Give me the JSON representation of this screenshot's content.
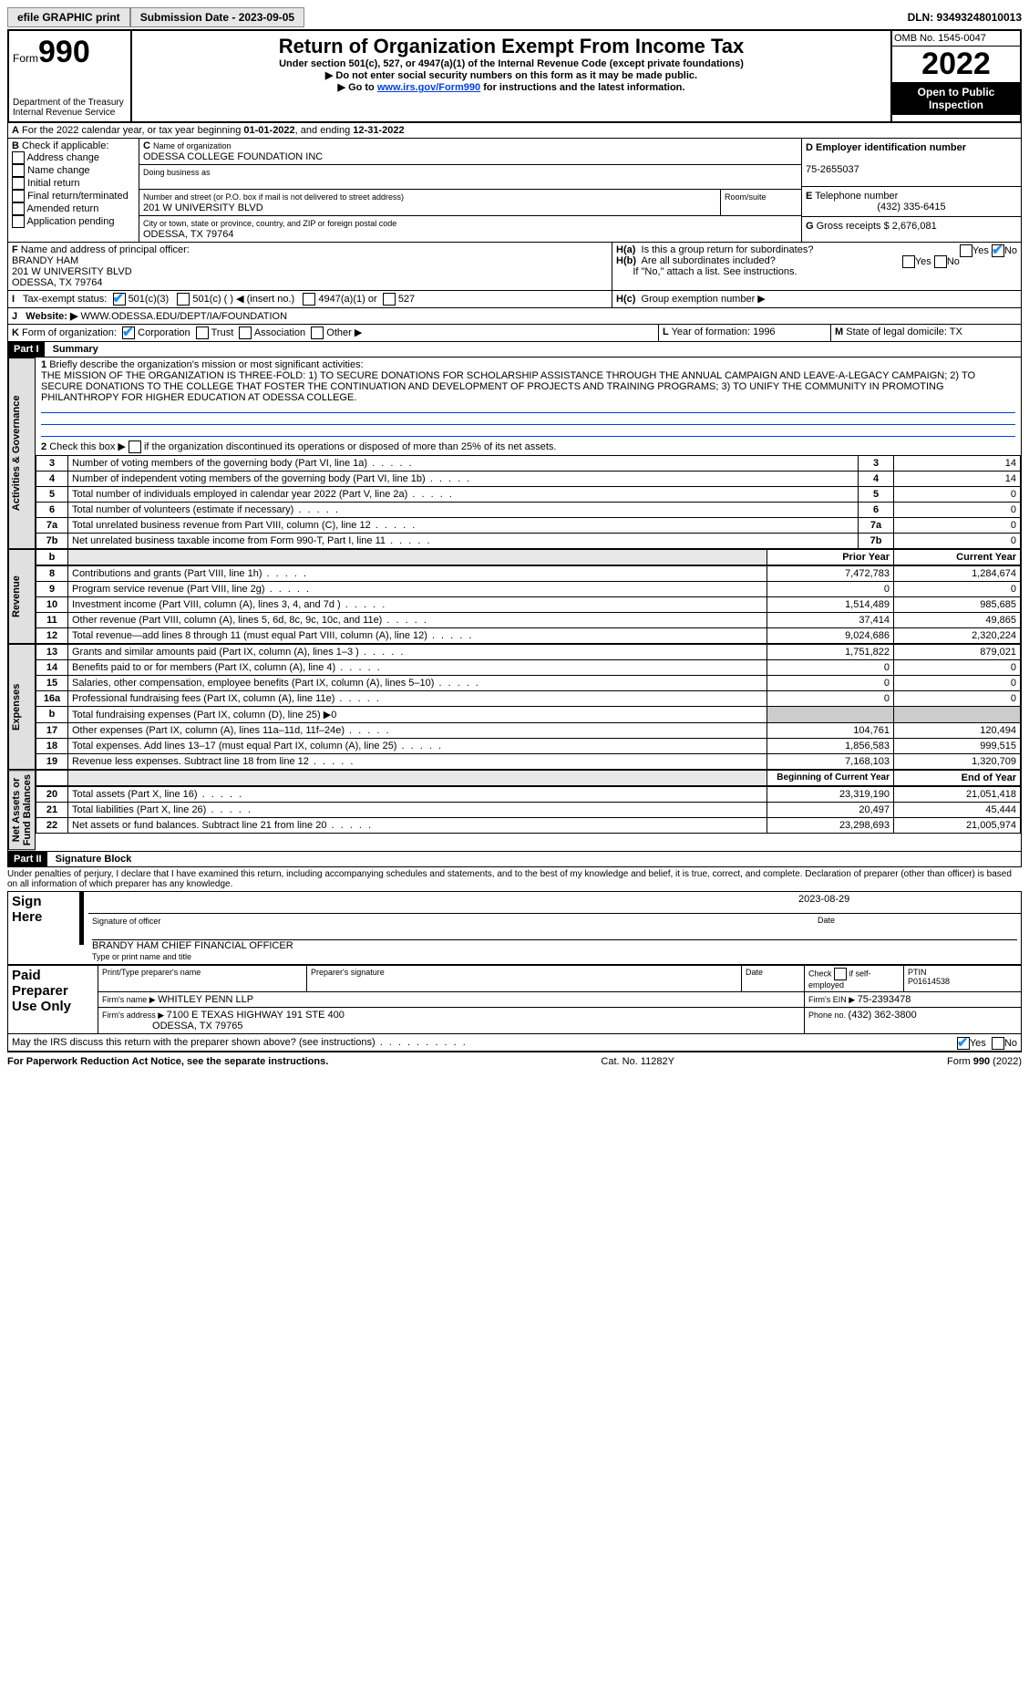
{
  "top": {
    "efile": "efile GRAPHIC print",
    "submission_label": "Submission Date - 2023-09-05",
    "dln_label": "DLN: 93493248010013"
  },
  "header": {
    "form_prefix": "Form",
    "form_number": "990",
    "dept": "Department of the Treasury\nInternal Revenue Service",
    "title": "Return of Organization Exempt From Income Tax",
    "subtitle1": "Under section 501(c), 527, or 4947(a)(1) of the Internal Revenue Code (except private foundations)",
    "subtitle2": "▶ Do not enter social security numbers on this form as it may be made public.",
    "subtitle3_prefix": "▶ Go to ",
    "subtitle3_link": "www.irs.gov/Form990",
    "subtitle3_suffix": " for instructions and the latest information.",
    "omb": "OMB No. 1545-0047",
    "year": "2022",
    "open": "Open to Public Inspection"
  },
  "A": {
    "text_prefix": "For the 2022 calendar year, or tax year beginning ",
    "begin": "01-01-2022",
    "mid": ", and ending ",
    "end": "12-31-2022"
  },
  "B": {
    "label": "Check if applicable:",
    "opts": [
      "Address change",
      "Name change",
      "Initial return",
      "Final return/terminated",
      "Amended return",
      "Application pending"
    ]
  },
  "C": {
    "name_label": "Name of organization",
    "name": "ODESSA COLLEGE FOUNDATION INC",
    "dba_label": "Doing business as",
    "street_label": "Number and street (or P.O. box if mail is not delivered to street address)",
    "street": "201 W UNIVERSITY BLVD",
    "room_label": "Room/suite",
    "city_label": "City or town, state or province, country, and ZIP or foreign postal code",
    "city": "ODESSA, TX  79764"
  },
  "D": {
    "label": "Employer identification number",
    "value": "75-2655037"
  },
  "E": {
    "label": "Telephone number",
    "value": "(432) 335-6415"
  },
  "G": {
    "label_prefix": "Gross receipts $ ",
    "value": "2,676,081"
  },
  "F": {
    "label": "Name and address of principal officer:",
    "name": "BRANDY HAM",
    "addr1": "201 W UNIVERSITY BLVD",
    "addr2": "ODESSA, TX  79764"
  },
  "H": {
    "a_label": "Is this a group return for subordinates?",
    "a_yes": "Yes",
    "a_no": "No",
    "b_label": "Are all subordinates included?",
    "b_yes": "Yes",
    "b_no": "No",
    "b_note": "If \"No,\" attach a list. See instructions.",
    "c_label": "Group exemption number ▶"
  },
  "I": {
    "label": "Tax-exempt status:",
    "opts": [
      "501(c)(3)",
      "501(c) (  ) ◀ (insert no.)",
      "4947(a)(1) or",
      "527"
    ]
  },
  "J": {
    "label": "Website: ▶",
    "value": "WWW.ODESSA.EDU/DEPT/IA/FOUNDATION"
  },
  "K": {
    "label": "Form of organization:",
    "opts": [
      "Corporation",
      "Trust",
      "Association",
      "Other ▶"
    ]
  },
  "L": {
    "label": "Year of formation: ",
    "value": "1996"
  },
  "M": {
    "label": "State of legal domicile: ",
    "value": "TX"
  },
  "part1": {
    "title_bar": "Part I",
    "title": "Summary",
    "line1_label": "Briefly describe the organization's mission or most significant activities:",
    "mission": "THE MISSION OF THE ORGANIZATION IS THREE-FOLD: 1) TO SECURE DONATIONS FOR SCHOLARSHIP ASSISTANCE THROUGH THE ANNUAL CAMPAIGN AND LEAVE-A-LEGACY CAMPAIGN; 2) TO SECURE DONATIONS TO THE COLLEGE THAT FOSTER THE CONTINUATION AND DEVELOPMENT OF PROJECTS AND TRAINING PROGRAMS; 3) TO UNIFY THE COMMUNITY IN PROMOTING PHILANTHROPY FOR HIGHER EDUCATION AT ODESSA COLLEGE.",
    "line2": "Check this box ▶       if the organization discontinued its operations or disposed of more than 25% of its net assets.",
    "vert_labels": {
      "ag": "Activities & Governance",
      "rev": "Revenue",
      "exp": "Expenses",
      "nab": "Net Assets or\nFund Balances"
    },
    "headers": {
      "prior": "Prior Year",
      "current": "Current Year",
      "boy": "Beginning of Current Year",
      "eoy": "End of Year"
    },
    "ag_lines": [
      {
        "n": "3",
        "t": "Number of voting members of the governing body (Part VI, line 1a)",
        "box": "3",
        "v": "14"
      },
      {
        "n": "4",
        "t": "Number of independent voting members of the governing body (Part VI, line 1b)",
        "box": "4",
        "v": "14"
      },
      {
        "n": "5",
        "t": "Total number of individuals employed in calendar year 2022 (Part V, line 2a)",
        "box": "5",
        "v": "0"
      },
      {
        "n": "6",
        "t": "Total number of volunteers (estimate if necessary)",
        "box": "6",
        "v": "0"
      },
      {
        "n": "7a",
        "t": "Total unrelated business revenue from Part VIII, column (C), line 12",
        "box": "7a",
        "v": "0"
      },
      {
        "n": "7b",
        "t": "Net unrelated business taxable income from Form 990-T, Part I, line 11",
        "box": "7b",
        "v": "0"
      }
    ],
    "rev_lines": [
      {
        "n": "8",
        "t": "Contributions and grants (Part VIII, line 1h)",
        "p": "7,472,783",
        "c": "1,284,674"
      },
      {
        "n": "9",
        "t": "Program service revenue (Part VIII, line 2g)",
        "p": "0",
        "c": "0"
      },
      {
        "n": "10",
        "t": "Investment income (Part VIII, column (A), lines 3, 4, and 7d )",
        "p": "1,514,489",
        "c": "985,685"
      },
      {
        "n": "11",
        "t": "Other revenue (Part VIII, column (A), lines 5, 6d, 8c, 9c, 10c, and 11e)",
        "p": "37,414",
        "c": "49,865"
      },
      {
        "n": "12",
        "t": "Total revenue—add lines 8 through 11 (must equal Part VIII, column (A), line 12)",
        "p": "9,024,686",
        "c": "2,320,224"
      }
    ],
    "exp_lines": [
      {
        "n": "13",
        "t": "Grants and similar amounts paid (Part IX, column (A), lines 1–3 )",
        "p": "1,751,822",
        "c": "879,021"
      },
      {
        "n": "14",
        "t": "Benefits paid to or for members (Part IX, column (A), line 4)",
        "p": "0",
        "c": "0"
      },
      {
        "n": "15",
        "t": "Salaries, other compensation, employee benefits (Part IX, column (A), lines 5–10)",
        "p": "0",
        "c": "0"
      },
      {
        "n": "16a",
        "t": "Professional fundraising fees (Part IX, column (A), line 11e)",
        "p": "0",
        "c": "0"
      },
      {
        "n": "b",
        "t": "Total fundraising expenses (Part IX, column (D), line 25) ▶0",
        "p": "",
        "c": "",
        "shade": true
      },
      {
        "n": "17",
        "t": "Other expenses (Part IX, column (A), lines 11a–11d, 11f–24e)",
        "p": "104,761",
        "c": "120,494"
      },
      {
        "n": "18",
        "t": "Total expenses. Add lines 13–17 (must equal Part IX, column (A), line 25)",
        "p": "1,856,583",
        "c": "999,515"
      },
      {
        "n": "19",
        "t": "Revenue less expenses. Subtract line 18 from line 12",
        "p": "7,168,103",
        "c": "1,320,709"
      }
    ],
    "nab_lines": [
      {
        "n": "20",
        "t": "Total assets (Part X, line 16)",
        "p": "23,319,190",
        "c": "21,051,418"
      },
      {
        "n": "21",
        "t": "Total liabilities (Part X, line 26)",
        "p": "20,497",
        "c": "45,444"
      },
      {
        "n": "22",
        "t": "Net assets or fund balances. Subtract line 21 from line 20",
        "p": "23,298,693",
        "c": "21,005,974"
      }
    ]
  },
  "part2": {
    "title_bar": "Part II",
    "title": "Signature Block",
    "declaration": "Under penalties of perjury, I declare that I have examined this return, including accompanying schedules and statements, and to the best of my knowledge and belief, it is true, correct, and complete. Declaration of preparer (other than officer) is based on all information of which preparer has any knowledge.",
    "sign_here": "Sign Here",
    "sig_officer": "Signature of officer",
    "date_label": "Date",
    "sig_date": "2023-08-29",
    "officer_name": "BRANDY HAM CHIEF FINANCIAL OFFICER",
    "type_name": "Type or print name and title",
    "paid": "Paid Preparer Use Only",
    "prep_name_label": "Print/Type preparer's name",
    "prep_sig_label": "Preparer's signature",
    "prep_date_label": "Date",
    "self_emp": "if self-employed",
    "check_label": "Check",
    "ptin_label": "PTIN",
    "ptin": "P01614538",
    "firm_name_label": "Firm's name    ▶ ",
    "firm_name": "WHITLEY PENN LLP",
    "firm_ein_label": "Firm's EIN ▶ ",
    "firm_ein": "75-2393478",
    "firm_addr_label": "Firm's address ▶ ",
    "firm_addr1": "7100 E TEXAS HIGHWAY 191 STE 400",
    "firm_addr2": "ODESSA, TX  79765",
    "phone_label": "Phone no. ",
    "phone": "(432) 362-3800",
    "discuss": "May the IRS discuss this return with the preparer shown above? (see instructions)",
    "yes": "Yes",
    "no": "No"
  },
  "footer": {
    "pra": "For Paperwork Reduction Act Notice, see the separate instructions.",
    "cat": "Cat. No. 11282Y",
    "form": "Form 990 (2022)"
  }
}
